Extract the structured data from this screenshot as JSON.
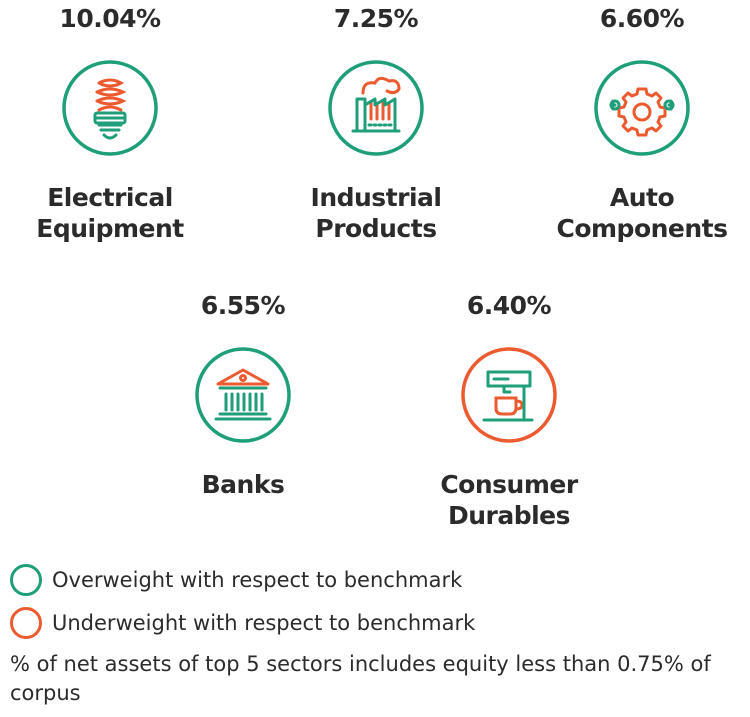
{
  "sectors": [
    {
      "percent": "10.04%",
      "name_line1": "Electrical",
      "name_line2": "Equipment",
      "weight": "overweight",
      "icon": "light-bulb-icon"
    },
    {
      "percent": "7.25%",
      "name_line1": "Industrial",
      "name_line2": "Products",
      "weight": "overweight",
      "icon": "factory-icon"
    },
    {
      "percent": "6.60%",
      "name_line1": "Auto",
      "name_line2": "Components",
      "weight": "overweight",
      "icon": "gear-icon"
    },
    {
      "percent": "6.55%",
      "name_line1": "Banks",
      "name_line2": "",
      "weight": "overweight",
      "icon": "bank-building-icon"
    },
    {
      "percent": "6.40%",
      "name_line1": "Consumer",
      "name_line2": "Durables",
      "weight": "underweight",
      "icon": "coffee-machine-icon"
    }
  ],
  "legend": {
    "overweight": "Overweight with respect to benchmark",
    "underweight": "Underweight with respect to benchmark"
  },
  "note": "% of net assets of top 5 sectors includes equity less than 0.75% of corpus",
  "colors": {
    "green": "#1f9e7a",
    "orange": "#ec5a2f"
  }
}
